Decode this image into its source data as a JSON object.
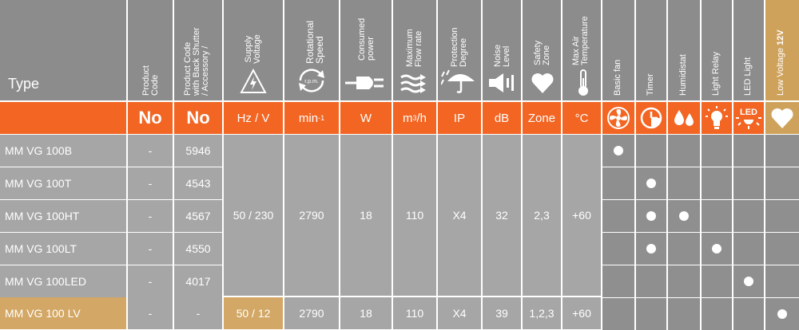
{
  "header": {
    "type": "Type",
    "product_code": "Product\nCode",
    "product_code_shutter": "Product Code\nwith Back Shutter\n/ Accessory /",
    "supply_voltage": "Supply\nVoltage",
    "rotational_speed": "Rotational\nSpeed",
    "rpm_icon_text": "r.p.m.",
    "consumed_power": "Consumed\npower",
    "max_flow": "Maximum\nFlow rate",
    "protection": "Protection\nDegree",
    "noise": "Noise\nLevel",
    "safety": "Safety\nZone",
    "max_air_temp": "Max Air\nTemperature",
    "basic_fan": "Basic fan",
    "timer": "Timer",
    "humidistat": "Humidistat",
    "light_relay": "Light Relay",
    "led_light": "LED Light",
    "low_voltage": "Low Voltage ",
    "low_voltage_bold": "12V",
    "led_icon_text": "LED"
  },
  "units": {
    "product_code": "No",
    "product_code_shutter": "No",
    "supply_voltage": "Hz / V",
    "rotational_speed": "min",
    "rotational_speed_sup": "-1",
    "consumed_power": "W",
    "max_flow": "m",
    "max_flow_sup": "3",
    "max_flow_tail": "/h",
    "protection": "IP",
    "noise": "dB",
    "safety": "Zone",
    "max_air_temp": "°C"
  },
  "shared_values": {
    "supply_voltage": "50 / 230",
    "rotational_speed": "2790",
    "consumed_power": "18",
    "max_flow": "110",
    "protection": "X4",
    "noise": "32",
    "safety": "2,3",
    "max_air_temp": "+60"
  },
  "rows": [
    {
      "type": "MM VG 100B",
      "product_code": "-",
      "shutter_code": "5946"
    },
    {
      "type": "MM VG 100T",
      "product_code": "-",
      "shutter_code": "4543"
    },
    {
      "type": "MM VG 100HT",
      "product_code": "-",
      "shutter_code": "4567"
    },
    {
      "type": "MM VG 100LT",
      "product_code": "-",
      "shutter_code": "4550"
    },
    {
      "type": "MM VG 100LED",
      "product_code": "-",
      "shutter_code": "4017"
    }
  ],
  "lv_row": {
    "type": "MM VG 100 LV",
    "product_code": "-",
    "shutter_code": "-",
    "supply_voltage": "50 / 12",
    "rotational_speed": "2790",
    "consumed_power": "18",
    "max_flow": "110",
    "protection": "X4",
    "noise": "39",
    "safety": "1,2,3",
    "max_air_temp": "+60"
  },
  "features": {
    "basic_fan": [
      1,
      0,
      0,
      0,
      0,
      0
    ],
    "timer": [
      0,
      1,
      1,
      1,
      0,
      0
    ],
    "humidistat": [
      0,
      0,
      1,
      0,
      0,
      0
    ],
    "light_relay": [
      0,
      0,
      0,
      1,
      0,
      0
    ],
    "led_light": [
      0,
      0,
      0,
      0,
      1,
      0
    ],
    "low_voltage": [
      0,
      0,
      0,
      0,
      0,
      1
    ]
  },
  "colors": {
    "header_gray": "#8c8c8c",
    "orange": "#f26522",
    "gold": "#cfa25c",
    "body_gray": "#a6a6a6",
    "feature_gray": "#8f8f8f"
  },
  "icons": {
    "supply_voltage": "high-voltage-triangle-icon",
    "rotational_speed": "rotation-arrows-icon",
    "consumed_power": "power-plug-icon",
    "max_flow": "airflow-arrows-icon",
    "protection": "umbrella-rain-icon",
    "noise": "speaker-icon",
    "safety": "heart-icon",
    "max_air_temp": "thermometer-icon",
    "basic_fan": "fan-icon",
    "timer": "clock-icon",
    "humidistat": "drops-icon",
    "light_relay": "light-bulb-icon",
    "led_light": "led-light-icon",
    "low_voltage": "heart-icon"
  }
}
